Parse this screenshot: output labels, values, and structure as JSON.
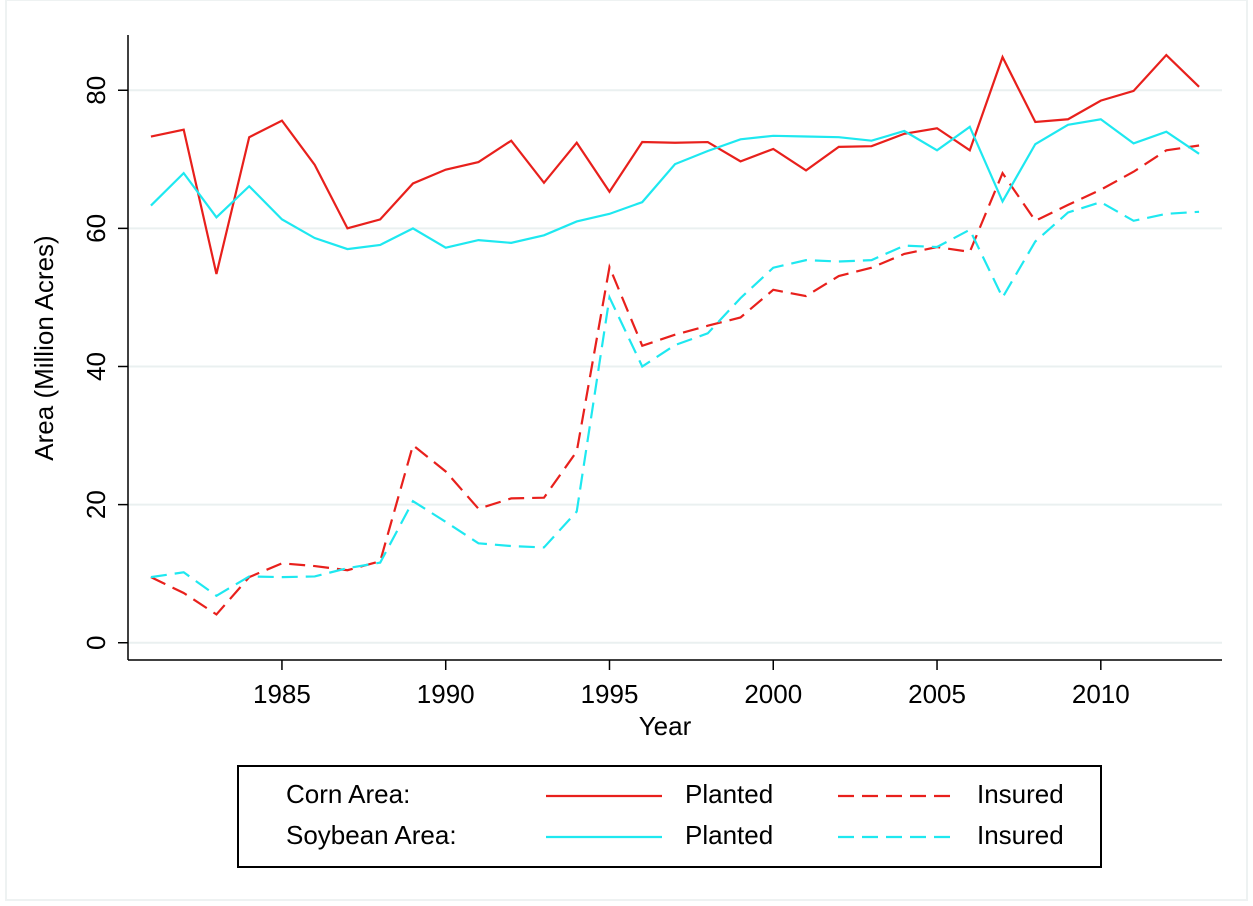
{
  "chart_data": {
    "type": "line",
    "x_label": "Year",
    "y_label": "Area (Million Acres)",
    "x": [
      1981,
      1982,
      1983,
      1984,
      1985,
      1986,
      1987,
      1988,
      1989,
      1990,
      1991,
      1992,
      1993,
      1994,
      1995,
      1996,
      1997,
      1998,
      1999,
      2000,
      2001,
      2002,
      2003,
      2004,
      2005,
      2006,
      2007,
      2008,
      2009,
      2010,
      2011,
      2012,
      2013
    ],
    "series": [
      {
        "group": "Corn Area:",
        "name": "Planted",
        "color": "#e8201c",
        "dash": false,
        "values": [
          73.3,
          74.3,
          53.4,
          73.2,
          75.6,
          69.2,
          60,
          61.3,
          66.5,
          68.5,
          69.6,
          72.7,
          66.6,
          72.4,
          65.3,
          72.5,
          72.4,
          72.5,
          69.7,
          71.5,
          68.4,
          71.8,
          71.9,
          73.7,
          74.5,
          71.3,
          84.8,
          75.4,
          75.8,
          78.5,
          79.9,
          85.1,
          80.5
        ]
      },
      {
        "group": "Corn Area:",
        "name": "Insured",
        "color": "#e8201c",
        "dash": true,
        "values": [
          9.5,
          7.2,
          4.1,
          9.5,
          11.5,
          11.1,
          10.5,
          11.8,
          28.6,
          24.8,
          19.4,
          20.9,
          21,
          27.7,
          54.4,
          43,
          44.6,
          45.9,
          47.1,
          51.1,
          50.2,
          53.1,
          54.3,
          56.3,
          57.3,
          56.6,
          68,
          61.1,
          63.4,
          65.6,
          68.2,
          71.3,
          72
        ]
      },
      {
        "group": "Soybean Area:",
        "name": "Planted",
        "color": "#1ee8f0",
        "dash": false,
        "values": [
          63.3,
          68,
          61.6,
          66.1,
          61.3,
          58.6,
          57,
          57.6,
          60,
          57.2,
          58.3,
          57.9,
          59,
          61,
          62.1,
          63.8,
          69.3,
          71.2,
          72.9,
          73.4,
          73.3,
          73.2,
          72.7,
          74.1,
          71.3,
          74.7,
          63.9,
          72.2,
          75,
          75.8,
          72.3,
          74,
          70.8
        ]
      },
      {
        "group": "Soybean Area:",
        "name": "Insured",
        "color": "#1ee8f0",
        "dash": true,
        "values": [
          9.5,
          10.2,
          6.8,
          9.6,
          9.5,
          9.6,
          10.8,
          11.6,
          20.5,
          17.5,
          14.4,
          14,
          13.8,
          19,
          50,
          40,
          43.1,
          44.8,
          49.9,
          54.3,
          55.4,
          55.2,
          55.4,
          57.5,
          57.3,
          59.8,
          50,
          58.1,
          62.3,
          63.8,
          61.1,
          62.1,
          62.4
        ]
      }
    ],
    "xlim": [
      1980.3,
      2013.7
    ],
    "ylim": [
      -2.5,
      88
    ],
    "xticks": [
      1985,
      1990,
      1995,
      2000,
      2005,
      2010
    ],
    "yticks": [
      0,
      20,
      40,
      60,
      80
    ],
    "grid": true
  }
}
